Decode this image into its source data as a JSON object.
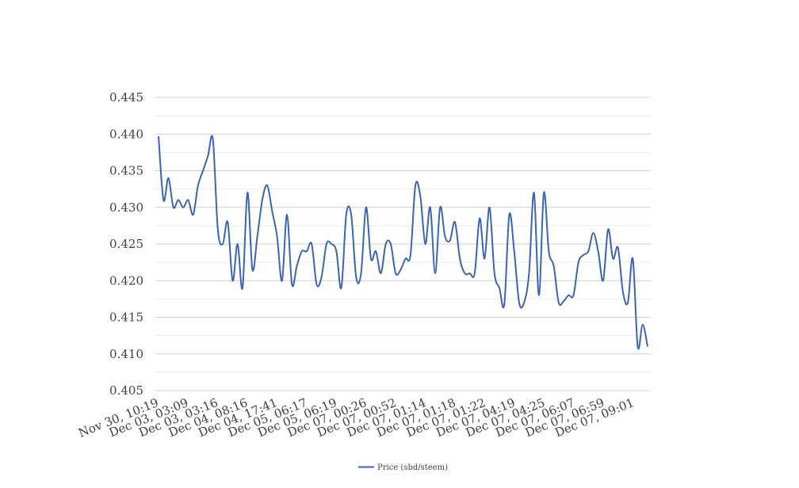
{
  "chart_data": {
    "type": "line",
    "title": "",
    "xlabel": "",
    "ylabel": "",
    "ylim": [
      0.405,
      0.445
    ],
    "yticks": [
      "0.405",
      "0.410",
      "0.415",
      "0.420",
      "0.425",
      "0.430",
      "0.435",
      "0.440",
      "0.445"
    ],
    "grid": true,
    "legend_position": "bottom",
    "x_tick_labels": [
      "Nov 30, 10:19",
      "Dec 03, 03:09",
      "Dec 03, 03:16",
      "Dec 04, 08:16",
      "Dec 04, 17:41",
      "Dec 05, 06:17",
      "Dec 05, 06:19",
      "Dec 07, 00:26",
      "Dec 07, 00:52",
      "Dec 07, 01:14",
      "Dec 07, 01:18",
      "Dec 07, 01:22",
      "Dec 07, 04:19",
      "Dec 07, 04:25",
      "Dec 07, 06:07",
      "Dec 07, 06:59",
      "Dec 07, 09:01"
    ],
    "series": [
      {
        "name": "Price (sbd/steem)",
        "color": "#3a64b4",
        "values": [
          0.4397,
          0.431,
          0.434,
          0.43,
          0.431,
          0.43,
          0.431,
          0.429,
          0.433,
          0.435,
          0.437,
          0.4393,
          0.427,
          0.425,
          0.428,
          0.42,
          0.425,
          0.419,
          0.432,
          0.4215,
          0.426,
          0.431,
          0.433,
          0.4295,
          0.426,
          0.42,
          0.429,
          0.4195,
          0.422,
          0.424,
          0.424,
          0.425,
          0.4195,
          0.4205,
          0.425,
          0.425,
          0.424,
          0.419,
          0.429,
          0.429,
          0.4205,
          0.421,
          0.43,
          0.423,
          0.424,
          0.421,
          0.425,
          0.425,
          0.421,
          0.4215,
          0.423,
          0.4235,
          0.433,
          0.4315,
          0.425,
          0.43,
          0.421,
          0.43,
          0.426,
          0.4255,
          0.428,
          0.423,
          0.421,
          0.421,
          0.421,
          0.4285,
          0.423,
          0.43,
          0.421,
          0.419,
          0.4168,
          0.429,
          0.424,
          0.417,
          0.417,
          0.421,
          0.432,
          0.418,
          0.432,
          0.424,
          0.422,
          0.417,
          0.4172,
          0.418,
          0.418,
          0.4225,
          0.4235,
          0.424,
          0.4265,
          0.424,
          0.42,
          0.427,
          0.423,
          0.4245,
          0.4185,
          0.417,
          0.423,
          0.411,
          0.414,
          0.411
        ]
      }
    ]
  }
}
